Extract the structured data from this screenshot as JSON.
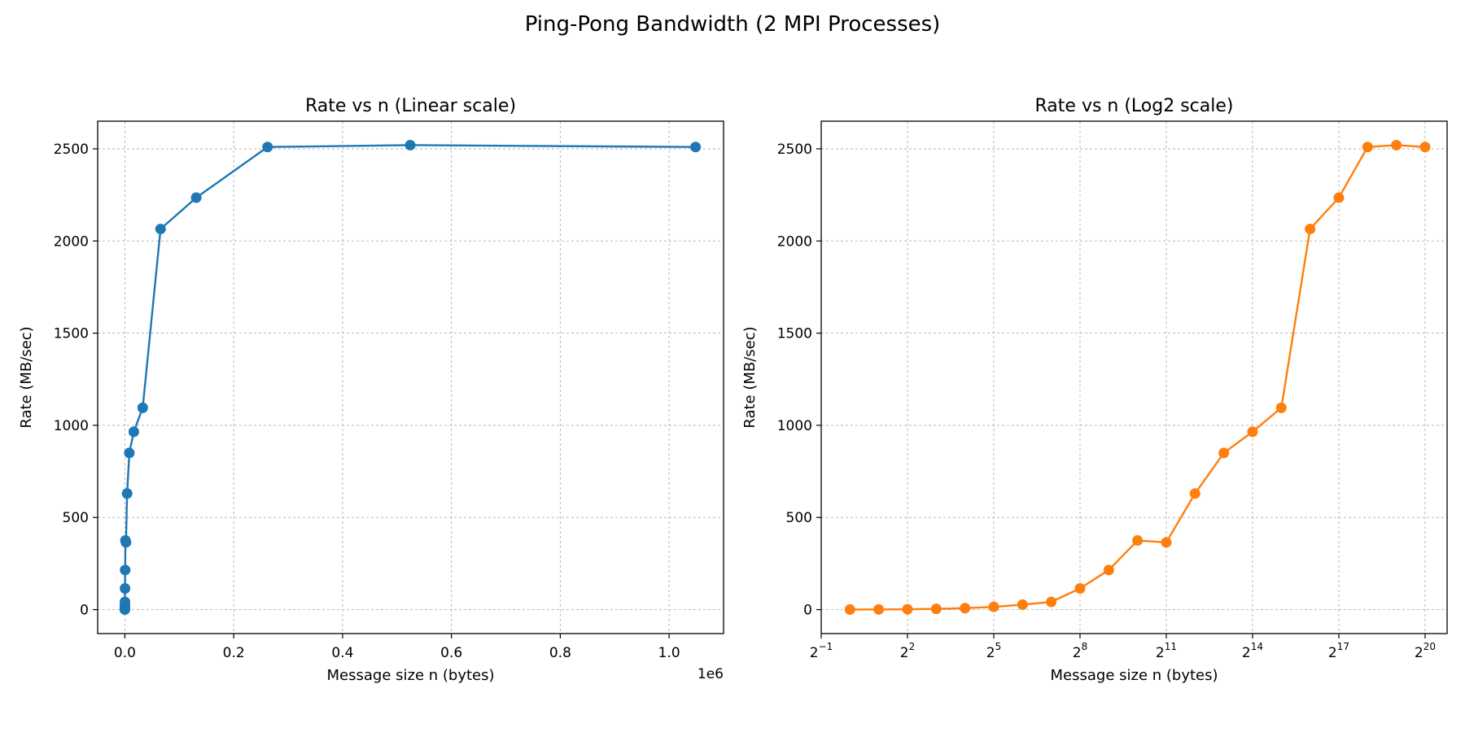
{
  "figure": {
    "suptitle": "Ping-Pong Bandwidth (2 MPI Processes)"
  },
  "chart_data": [
    {
      "type": "line",
      "title": "Rate vs n (Linear scale)",
      "xlabel": "Message size n (bytes)",
      "ylabel": "Rate (MB/sec)",
      "x_scale": "linear",
      "x_offset_label": "1e6",
      "xlim": [
        -50000,
        1100000
      ],
      "ylim": [
        -130,
        2650
      ],
      "xticks": [
        0,
        200000,
        400000,
        600000,
        800000,
        1000000
      ],
      "xtick_labels": [
        "0.0",
        "0.2",
        "0.4",
        "0.6",
        "0.8",
        "1.0"
      ],
      "yticks": [
        0,
        500,
        1000,
        1500,
        2000,
        2500
      ],
      "ytick_labels": [
        "0",
        "500",
        "1000",
        "1500",
        "2000",
        "2500"
      ],
      "grid": true,
      "color": "#1f77b4",
      "x": [
        1,
        2,
        4,
        8,
        16,
        32,
        64,
        128,
        256,
        512,
        1024,
        2048,
        4096,
        8192,
        16384,
        32768,
        65536,
        131072,
        262144,
        524288,
        1048576
      ],
      "y": [
        0.5,
        1,
        2,
        4,
        8,
        15,
        27,
        42,
        115,
        215,
        375,
        365,
        630,
        850,
        965,
        1095,
        2065,
        2235,
        2510,
        2520,
        2510
      ]
    },
    {
      "type": "line",
      "title": "Rate vs n (Log2 scale)",
      "xlabel": "Message size n (bytes)",
      "ylabel": "Rate (MB/sec)",
      "x_scale": "log2",
      "xlim": [
        0.5,
        1782000
      ],
      "ylim": [
        -130,
        2650
      ],
      "xticks": [
        0.5,
        4,
        32,
        256,
        2048,
        16384,
        131072,
        1048576
      ],
      "xtick_labels": [
        {
          "base": "2",
          "exp": "−1"
        },
        {
          "base": "2",
          "exp": "2"
        },
        {
          "base": "2",
          "exp": "5"
        },
        {
          "base": "2",
          "exp": "8"
        },
        {
          "base": "2",
          "exp": "11"
        },
        {
          "base": "2",
          "exp": "14"
        },
        {
          "base": "2",
          "exp": "17"
        },
        {
          "base": "2",
          "exp": "20"
        }
      ],
      "yticks": [
        0,
        500,
        1000,
        1500,
        2000,
        2500
      ],
      "ytick_labels": [
        "0",
        "500",
        "1000",
        "1500",
        "2000",
        "2500"
      ],
      "grid": true,
      "color": "#ff7f0e",
      "x": [
        1,
        2,
        4,
        8,
        16,
        32,
        64,
        128,
        256,
        512,
        1024,
        2048,
        4096,
        8192,
        16384,
        32768,
        65536,
        131072,
        262144,
        524288,
        1048576
      ],
      "y": [
        0.5,
        1,
        2,
        4,
        8,
        15,
        27,
        42,
        115,
        215,
        375,
        365,
        630,
        850,
        965,
        1095,
        2065,
        2235,
        2510,
        2520,
        2510
      ]
    }
  ]
}
